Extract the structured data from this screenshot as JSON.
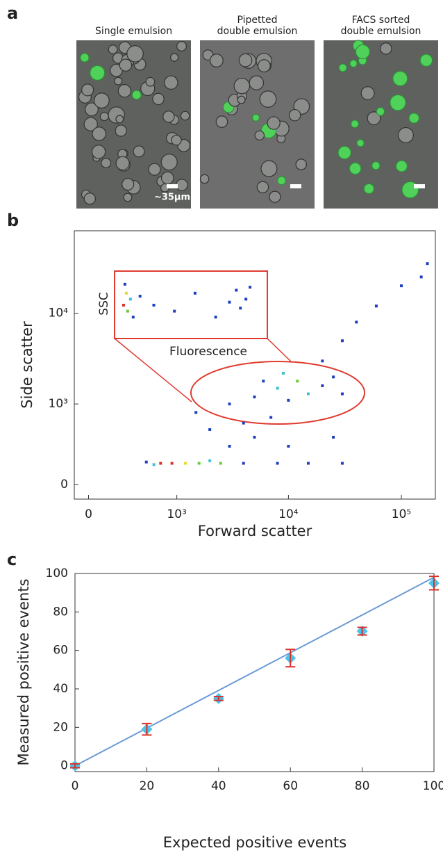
{
  "panel_a": {
    "label": "a",
    "images": [
      {
        "title": [
          "Single emulsion"
        ],
        "scale_bar": "~35µm"
      },
      {
        "title": [
          "Pipetted",
          "double emulsion"
        ]
      },
      {
        "title": [
          "FACS sorted",
          "double emulsion"
        ]
      }
    ]
  },
  "panel_b": {
    "label": "b",
    "chart_data": {
      "type": "scatter",
      "x_label": "Forward scatter",
      "y_label": "Side scatter",
      "scale": "biexponential",
      "xlim": [
        -100,
        200000
      ],
      "ylim": [
        -100,
        80000
      ],
      "xticks": [
        0,
        {
          "value": 1000,
          "label": "10³"
        },
        {
          "value": 10000,
          "label": "10⁴"
        },
        {
          "value": 100000,
          "label": "10⁵"
        }
      ],
      "yticks": [
        0,
        {
          "value": 1000,
          "label": "10³"
        },
        {
          "value": 10000,
          "label": "10⁴"
        }
      ],
      "x": [
        700,
        900,
        1200,
        1600,
        2500,
        600,
        4000,
        8000,
        15000,
        30000,
        500,
        2000,
        5000,
        8000,
        12000,
        15000,
        20000,
        25000,
        3000,
        6000,
        10000,
        30000,
        9000,
        2000,
        3000,
        5000,
        7000,
        10000,
        20000,
        30000,
        40000,
        60000,
        100000,
        150000,
        170000,
        1500,
        4000,
        25000
      ],
      "values": [
        150,
        150,
        150,
        150,
        150,
        140,
        150,
        150,
        150,
        150,
        160,
        170,
        1200,
        1500,
        1800,
        1300,
        1600,
        2000,
        1000,
        1800,
        1100,
        1300,
        2200,
        500,
        300,
        400,
        700,
        300,
        3000,
        5000,
        8000,
        12000,
        20000,
        25000,
        35000,
        800,
        600,
        400
      ],
      "point_colors": [
        "#d9302a",
        "#d9302a",
        "#e8d930",
        "#6acb3a",
        "#6acb3a",
        "#3fc0d0",
        "#1f3fbf",
        "#1f3fbf",
        "#1f3fbf",
        "#1f3fbf",
        "#1f3fbf",
        "#3fc0d0",
        "#1f3fbf",
        "#3fc0d0",
        "#6acb3a",
        "#3fc0d0",
        "#1f3fbf",
        "#1f3fbf",
        "#1f3fbf",
        "#1f3fbf",
        "#1f3fbf",
        "#1f3fbf",
        "#3fc0d0",
        "#1f3fbf",
        "#1f3fbf",
        "#1f3fbf",
        "#1f3fbf",
        "#1f3fbf",
        "#1f3fbf",
        "#1f3fbf",
        "#1f3fbf",
        "#1f3fbf",
        "#1f3fbf",
        "#1f3fbf",
        "#1f3fbf",
        "#1f3fbf",
        "#1f3fbf",
        "#1f3fbf"
      ],
      "inset": {
        "x_label": "Fluorescence",
        "y_label": "SSC",
        "xlim": [
          0,
          100
        ],
        "ylim": [
          0,
          100
        ],
        "x": [
          3,
          5,
          6,
          8,
          4,
          10,
          15,
          25,
          40,
          55,
          70,
          80,
          85,
          88,
          92,
          95
        ],
        "values": [
          50,
          70,
          40,
          60,
          85,
          30,
          65,
          50,
          40,
          70,
          30,
          55,
          75,
          45,
          60,
          80
        ],
        "point_colors": [
          "#d9302a",
          "#e8d930",
          "#6acb3a",
          "#3fc0d0",
          "#1f3fbf",
          "#1f3fbf",
          "#1f3fbf",
          "#1f3fbf",
          "#1f3fbf",
          "#1f3fbf",
          "#1f3fbf",
          "#1f3fbf",
          "#1f3fbf",
          "#1f3fbf",
          "#1f3fbf",
          "#1f3fbf"
        ]
      }
    }
  },
  "panel_c": {
    "label": "c",
    "chart_data": {
      "type": "errorbar",
      "x_label": "Expected positive events",
      "y_label": "Measured positive events",
      "xlim": [
        0,
        100
      ],
      "ylim": [
        -3,
        100
      ],
      "xticks": [
        0,
        20,
        40,
        60,
        80,
        100
      ],
      "yticks": [
        0,
        20,
        40,
        60,
        80,
        100
      ],
      "x": [
        0,
        20,
        40,
        60,
        80,
        100
      ],
      "values": [
        0,
        19,
        35,
        56,
        70,
        95
      ],
      "errors": [
        1,
        3,
        1,
        4.5,
        2,
        3.5
      ],
      "color": "#4cc3e8",
      "error_color": "#d9302a",
      "fit": {
        "x": [
          0,
          100
        ],
        "values": [
          0,
          98
        ],
        "color": "#6a9ad6"
      }
    }
  }
}
